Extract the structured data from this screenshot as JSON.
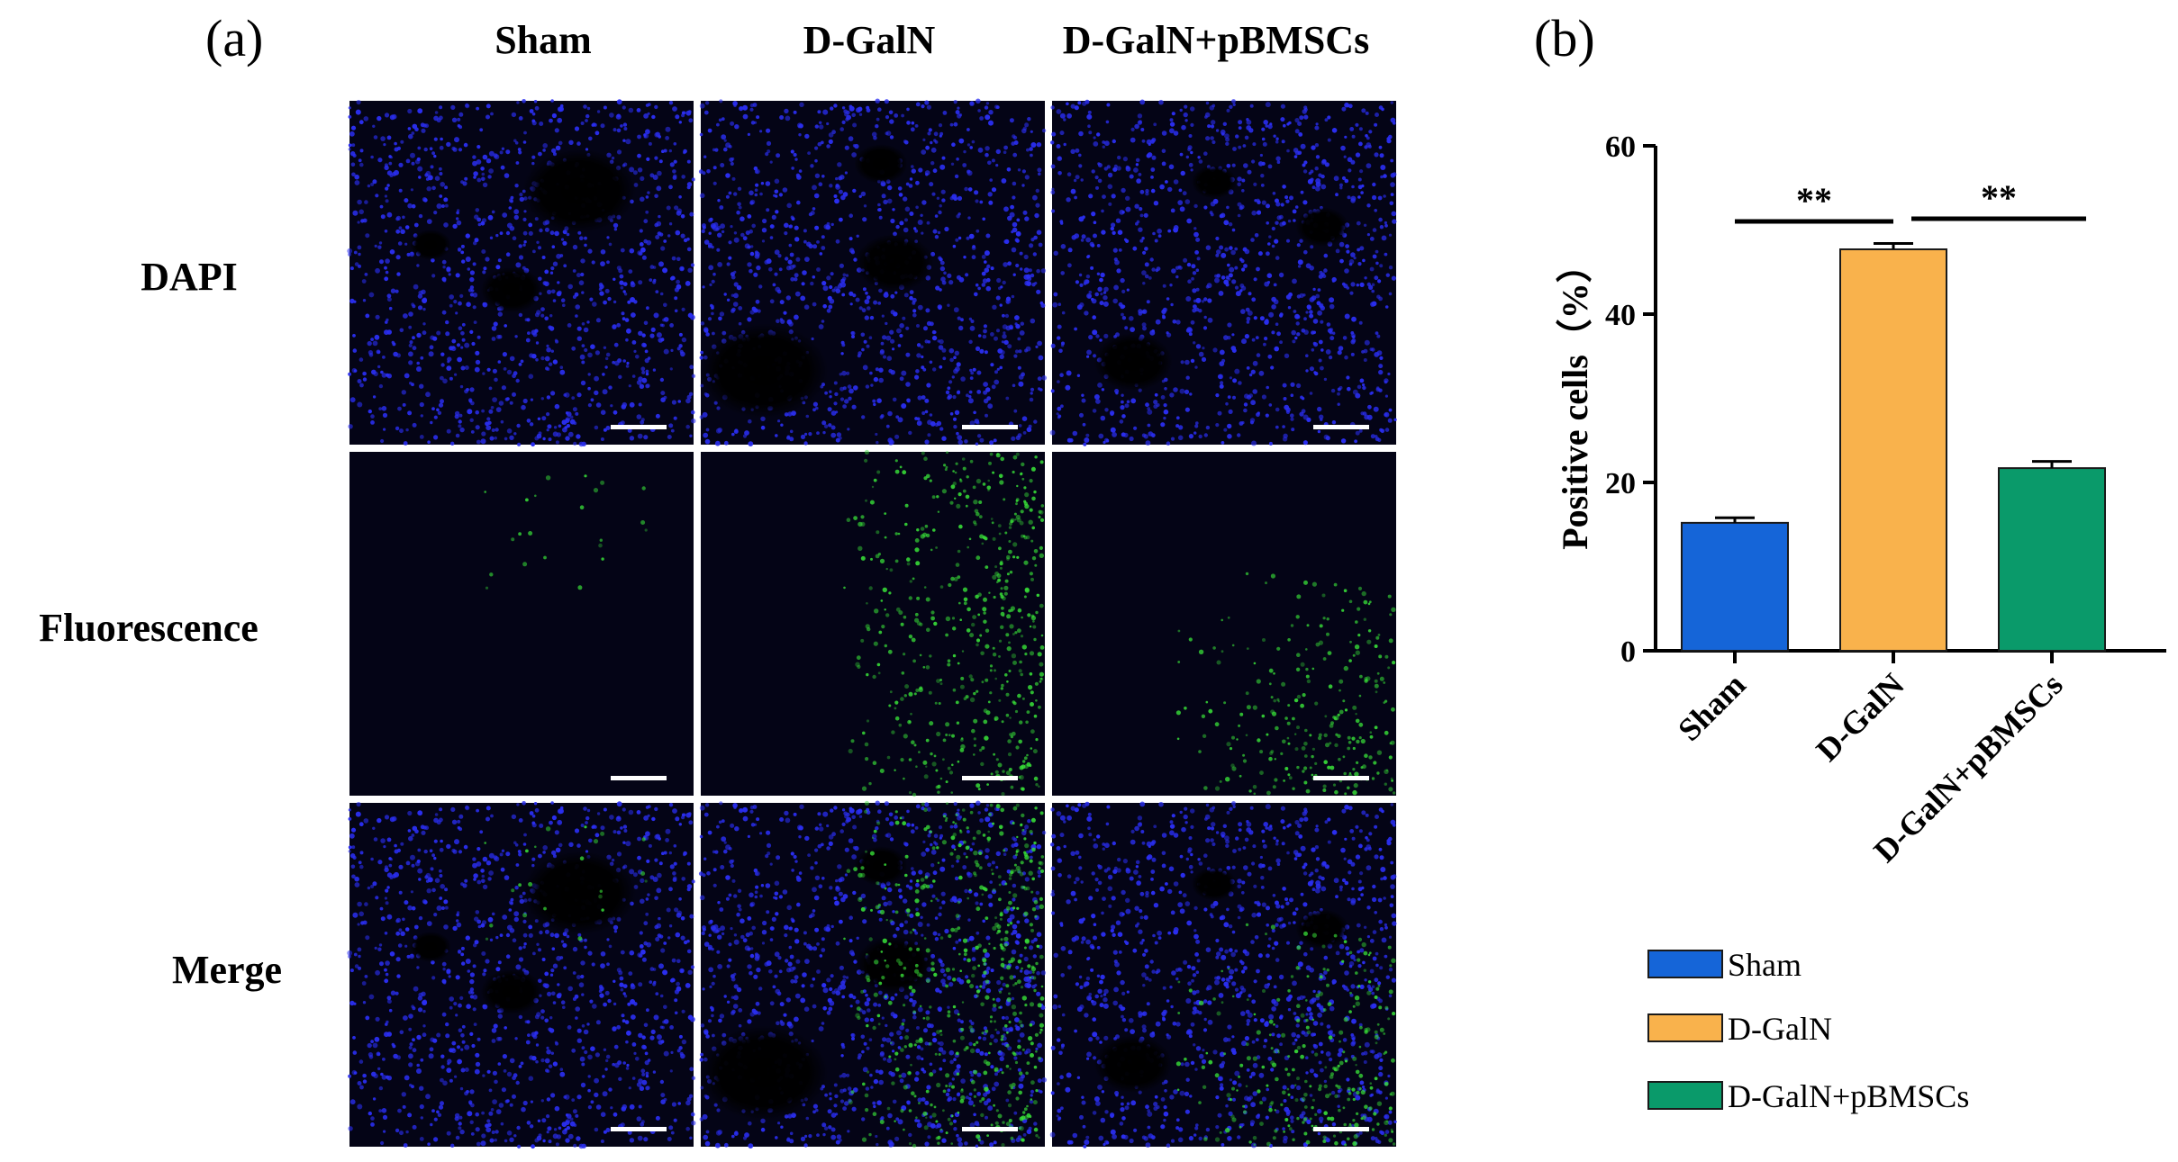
{
  "panel_a": {
    "label": "(a)",
    "columns": [
      "Sham",
      "D-GalN",
      "D-GalN+pBMSCs"
    ],
    "rows": [
      "DAPI",
      "Fluorescence",
      "Merge"
    ]
  },
  "panel_b": {
    "label": "(b)"
  },
  "colors": {
    "sham": "#1565d8",
    "dgaln": "#f9b24c",
    "dgaln_pbmscs": "#0a9a6a",
    "nuclei": "#2a2ef0",
    "green_signal": "#38e038",
    "image_bg": "#040416"
  },
  "icons": {
    "scale_bar": "scale-bar-icon",
    "micrograph": "fluorescence-micrograph"
  },
  "chart_data": {
    "type": "bar",
    "categories": [
      "Sham",
      "D-GalN",
      "D-GalN+pBMSCs"
    ],
    "values": [
      15.2,
      47.7,
      21.7
    ],
    "errors": [
      0.6,
      0.7,
      0.8
    ],
    "ylabel": "Positive cells（%）",
    "ylim": [
      0,
      60
    ],
    "yticks": [
      0,
      20,
      40,
      60
    ],
    "legend": [
      "Sham",
      "D-GalN",
      "D-GalN+pBMSCs"
    ],
    "legend_position": "bottom",
    "grid": false,
    "significance": [
      {
        "from": 0,
        "to": 1,
        "label": "**"
      },
      {
        "from": 1,
        "to": 2,
        "label": "**"
      }
    ]
  }
}
